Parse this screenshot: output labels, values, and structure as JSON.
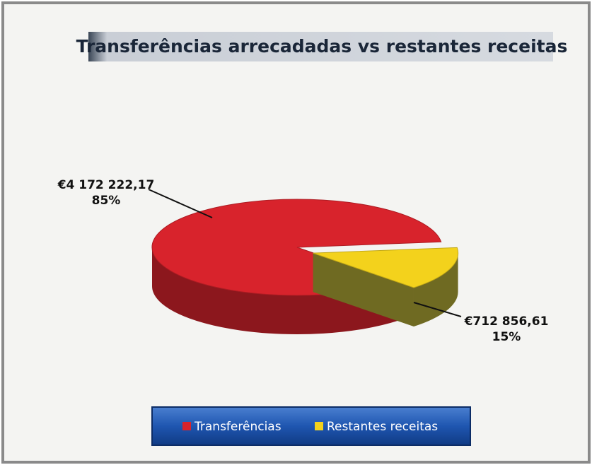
{
  "chart_data": {
    "type": "pie3d",
    "title": "Transferências arrecadadas vs restantes receitas",
    "categories": [
      "Transferências",
      "Restantes receitas"
    ],
    "values": [
      4172222.17,
      712856.61
    ],
    "value_labels": [
      "€4 172 222,17",
      "€712 856,61"
    ],
    "percentages": [
      85,
      15
    ],
    "percent_labels": [
      "85%",
      "15%"
    ],
    "colors": [
      "#d8232c",
      "#f3d21c"
    ],
    "legend": "bottom"
  }
}
